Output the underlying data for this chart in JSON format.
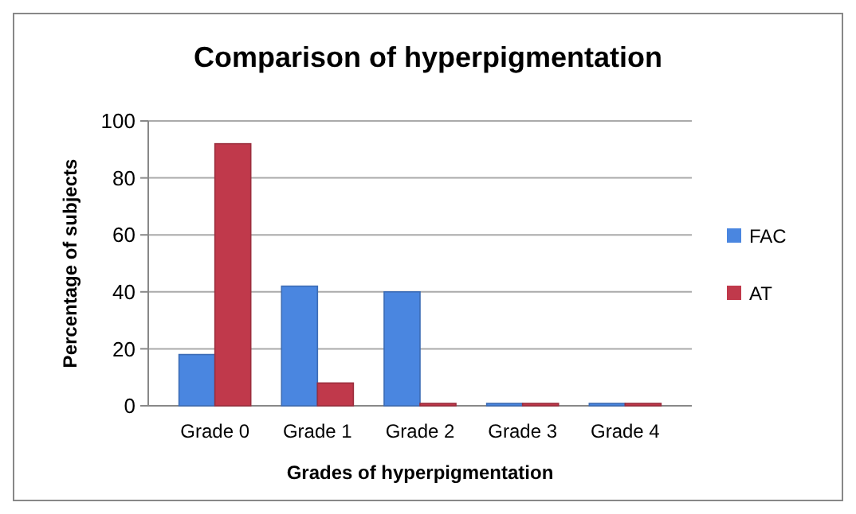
{
  "chart_data": {
    "type": "bar",
    "title": "Comparison of hyperpigmentation",
    "xlabel": "Grades of hyperpigmentation",
    "ylabel": "Percentage of subjects",
    "categories": [
      "Grade 0",
      "Grade 1",
      "Grade 2",
      "Grade 3",
      "Grade 4"
    ],
    "series": [
      {
        "name": "FAC",
        "color": "#4a86e0",
        "values": [
          18,
          42,
          40,
          0,
          0
        ]
      },
      {
        "name": "AT",
        "color": "#c0394b",
        "values": [
          92,
          8,
          0,
          0,
          0
        ]
      }
    ],
    "ylim": [
      0,
      100
    ],
    "yticks": [
      0,
      20,
      40,
      60,
      80,
      100
    ],
    "grid": "y",
    "legend": "right"
  }
}
